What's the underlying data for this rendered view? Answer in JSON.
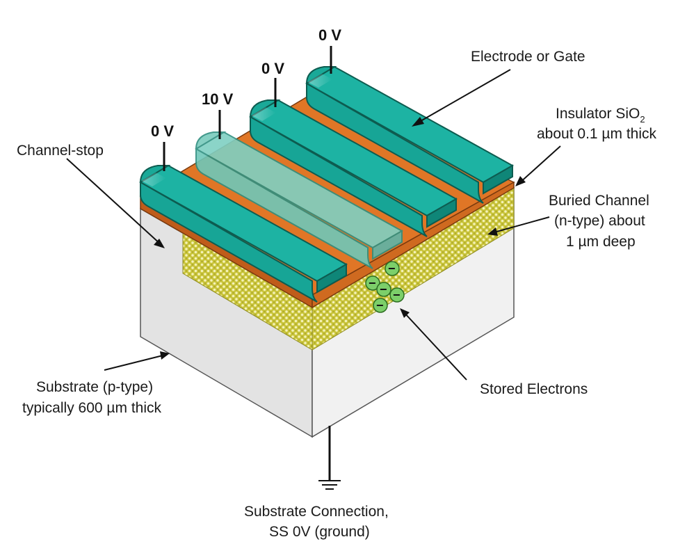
{
  "labels": {
    "electrode": "Electrode or Gate",
    "insulator_main": "Insulator SiO",
    "insulator_sub": "2",
    "insulator_line2": "about 0.1 µm thick",
    "channel_stop": "Channel-stop",
    "buried_line1": "Buried Channel",
    "buried_line2": "(n-type) about",
    "buried_line3": "1 µm deep",
    "stored": "Stored Electrons",
    "substrate_line1": "Substrate (p-type)",
    "substrate_line2": "typically 600 µm thick",
    "connection_line1": "Substrate Connection,",
    "connection_line2": "SS 0V (ground)"
  },
  "gate_voltages": [
    "0 V",
    "10 V",
    "0 V",
    "0 V"
  ],
  "electron_symbol": "−",
  "colors": {
    "gate": "#17a596",
    "gate_top": "#1db3a3",
    "gate_edge": "#0d5c50",
    "gate_active": "#6fc7b9",
    "oxide": "#e07626",
    "oxide_dark": "#bf5c1a",
    "channel": "#c9c43a",
    "substrate_left": "#e3e3e3",
    "substrate_right": "#f1f1f1",
    "electron": "#7ccf6a"
  },
  "icons": [
    "ground-icon",
    "electron-icon"
  ]
}
